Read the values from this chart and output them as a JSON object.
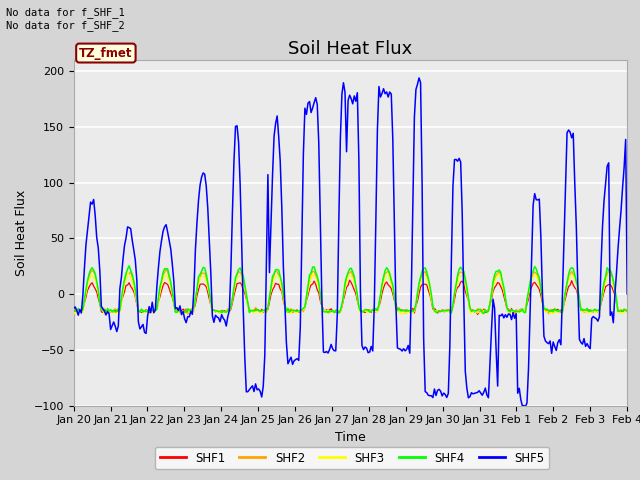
{
  "title": "Soil Heat Flux",
  "ylabel": "Soil Heat Flux",
  "xlabel": "Time",
  "ylim": [
    -100,
    210
  ],
  "yticks": [
    -100,
    -50,
    0,
    50,
    100,
    150,
    200
  ],
  "plot_bg_color": "#ebebeb",
  "fig_bg_color": "#d5d5d5",
  "annotation_text": "No data for f_SHF_1\nNo data for f_SHF_2",
  "tz_label": "TZ_fmet",
  "legend_entries": [
    "SHF1",
    "SHF2",
    "SHF3",
    "SHF4",
    "SHF5"
  ],
  "legend_colors": [
    "red",
    "orange",
    "yellow",
    "green",
    "blue"
  ],
  "x_tick_labels": [
    "Jan 20",
    "Jan 21",
    "Jan 22",
    "Jan 23",
    "Jan 24",
    "Jan 25",
    "Jan 26",
    "Jan 27",
    "Jan 28",
    "Jan 29",
    "Jan 30",
    "Jan 31",
    "Feb 1",
    "Feb 2",
    "Feb 3",
    "Feb 4"
  ],
  "title_fontsize": 13,
  "axis_label_fontsize": 9,
  "tick_fontsize": 8
}
